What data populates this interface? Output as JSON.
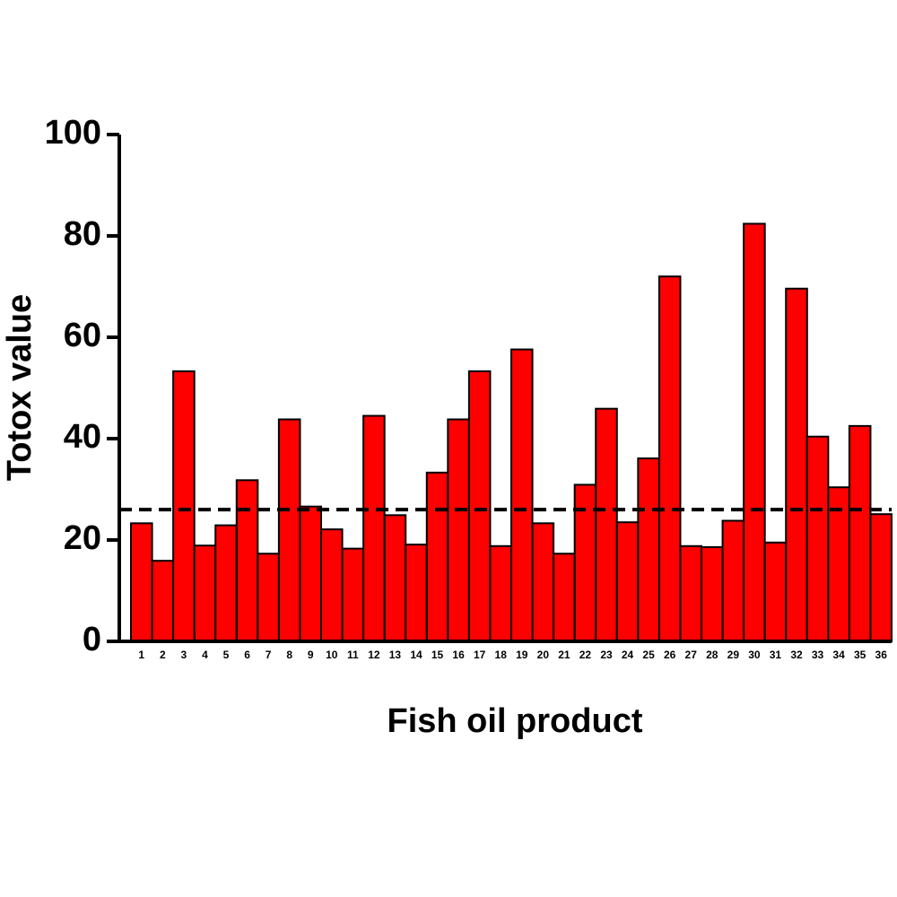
{
  "chart_data": {
    "type": "bar",
    "x_label": "Fish oil product",
    "y_label": "Totox value",
    "categories": [
      "1",
      "2",
      "3",
      "4",
      "5",
      "6",
      "7",
      "8",
      "9",
      "10",
      "11",
      "12",
      "13",
      "14",
      "15",
      "16",
      "17",
      "18",
      "19",
      "20",
      "21",
      "22",
      "23",
      "24",
      "25",
      "26",
      "27",
      "28",
      "29",
      "30",
      "31",
      "32",
      "33",
      "34",
      "35",
      "36"
    ],
    "values": [
      23.3,
      15.9,
      53.3,
      18.9,
      22.9,
      31.8,
      17.3,
      43.8,
      26.6,
      22.1,
      18.3,
      44.5,
      24.9,
      19.1,
      33.3,
      43.8,
      53.3,
      18.8,
      57.6,
      23.3,
      17.3,
      30.9,
      45.9,
      23.5,
      36.1,
      72.0,
      18.8,
      18.6,
      23.8,
      82.4,
      19.5,
      69.6,
      40.4,
      30.4,
      42.5,
      25.1
    ],
    "color": "#ff0000",
    "reference_line": 26,
    "ylim": [
      0,
      100
    ],
    "yticks": [
      0,
      20,
      40,
      60,
      80,
      100
    ]
  }
}
